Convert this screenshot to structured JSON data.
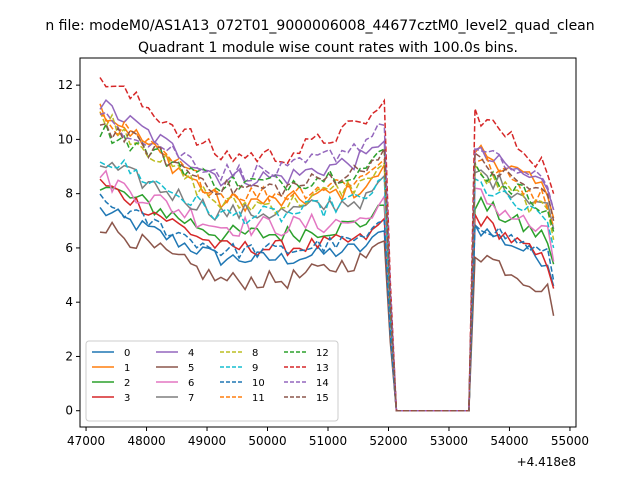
{
  "chart_data": {
    "type": "line",
    "suptitle": "n file: modeM0/AS1A13_072T01_9000006008_44677cztM0_level2_quad_clean",
    "title": "Quadrant 1 module wise count rates with 100.0s bins.",
    "xlabel": "",
    "ylabel": "",
    "x_offset_label": "+4.418e8",
    "xlim": [
      46900,
      55100
    ],
    "ylim": [
      -0.6,
      13.0
    ],
    "xticks": [
      47000,
      48000,
      49000,
      50000,
      51000,
      52000,
      53000,
      54000,
      55000
    ],
    "yticks": [
      0,
      2,
      4,
      6,
      8,
      10,
      12
    ],
    "grid": false,
    "legend_position": "lower left",
    "legend_columns": 4,
    "x_start": 47230,
    "x_step": 100,
    "gap_range": [
      52130,
      53330
    ],
    "series": [
      {
        "name": "0",
        "color": "#1f77b4",
        "style": "solid",
        "seg1_start": 7.4,
        "seg1_end": 6.0,
        "seg1_level": 5.6,
        "seg2_start": 6.8,
        "seg2_end": 5.4,
        "noise": 0.3
      },
      {
        "name": "1",
        "color": "#ff7f0e",
        "style": "solid",
        "seg1_start": 11.2,
        "seg1_end": 8.2,
        "seg1_level": 7.7,
        "seg2_start": 9.7,
        "seg2_end": 7.9,
        "noise": 0.35
      },
      {
        "name": "2",
        "color": "#2ca02c",
        "style": "solid",
        "seg1_start": 8.3,
        "seg1_end": 6.9,
        "seg1_level": 6.5,
        "seg2_start": 7.7,
        "seg2_end": 6.2,
        "noise": 0.35
      },
      {
        "name": "3",
        "color": "#d62728",
        "style": "solid",
        "seg1_start": 8.4,
        "seg1_end": 6.3,
        "seg1_level": 6.0,
        "seg2_start": 7.2,
        "seg2_end": 5.3,
        "noise": 0.3
      },
      {
        "name": "4",
        "color": "#9467bd",
        "style": "solid",
        "seg1_start": 11.3,
        "seg1_end": 9.3,
        "seg1_level": 8.6,
        "seg2_start": 9.5,
        "seg2_end": 8.2,
        "noise": 0.35
      },
      {
        "name": "5",
        "color": "#8c564b",
        "style": "solid",
        "seg1_start": 6.9,
        "seg1_end": 5.6,
        "seg1_level": 4.8,
        "seg2_start": 5.9,
        "seg2_end": 4.3,
        "noise": 0.35
      },
      {
        "name": "6",
        "color": "#e377c2",
        "style": "solid",
        "seg1_start": 8.6,
        "seg1_end": 7.0,
        "seg1_level": 6.8,
        "seg2_start": 8.0,
        "seg2_end": 6.3,
        "noise": 0.4
      },
      {
        "name": "7",
        "color": "#7f7f7f",
        "style": "solid",
        "seg1_start": 9.1,
        "seg1_end": 7.8,
        "seg1_level": 7.3,
        "seg2_start": 8.8,
        "seg2_end": 7.5,
        "noise": 0.35
      },
      {
        "name": "8",
        "color": "#bcbd22",
        "style": "dashed",
        "seg1_start": 11.0,
        "seg1_end": 8.4,
        "seg1_level": 7.6,
        "seg2_start": 8.8,
        "seg2_end": 7.1,
        "noise": 0.35
      },
      {
        "name": "9",
        "color": "#17becf",
        "style": "dashed",
        "seg1_start": 9.4,
        "seg1_end": 7.8,
        "seg1_level": 7.2,
        "seg2_start": 8.4,
        "seg2_end": 6.8,
        "noise": 0.35
      },
      {
        "name": "10",
        "color": "#1f77b4",
        "style": "dashed",
        "seg1_start": 7.7,
        "seg1_end": 6.3,
        "seg1_level": 5.9,
        "seg2_start": 7.0,
        "seg2_end": 5.6,
        "noise": 0.3
      },
      {
        "name": "11",
        "color": "#ff7f0e",
        "style": "dashed",
        "seg1_start": 10.9,
        "seg1_end": 8.6,
        "seg1_level": 8.0,
        "seg2_start": 9.3,
        "seg2_end": 7.6,
        "noise": 0.35
      },
      {
        "name": "12",
        "color": "#2ca02c",
        "style": "dashed",
        "seg1_start": 10.4,
        "seg1_end": 8.9,
        "seg1_level": 8.4,
        "seg2_start": 9.0,
        "seg2_end": 7.4,
        "noise": 0.35
      },
      {
        "name": "13",
        "color": "#d62728",
        "style": "dashed",
        "seg1_start": 12.3,
        "seg1_end": 10.6,
        "seg1_level": 9.4,
        "seg2_start": 11.0,
        "seg2_end": 8.8,
        "noise": 0.35
      },
      {
        "name": "14",
        "color": "#9467bd",
        "style": "dashed",
        "seg1_start": 10.8,
        "seg1_end": 9.9,
        "seg1_level": 8.8,
        "seg2_start": 9.6,
        "seg2_end": 8.2,
        "noise": 0.35
      },
      {
        "name": "15",
        "color": "#8c564b",
        "style": "dashed",
        "seg1_start": 10.6,
        "seg1_end": 8.9,
        "seg1_level": 8.2,
        "seg2_start": 9.2,
        "seg2_end": 7.8,
        "noise": 0.35
      }
    ]
  }
}
